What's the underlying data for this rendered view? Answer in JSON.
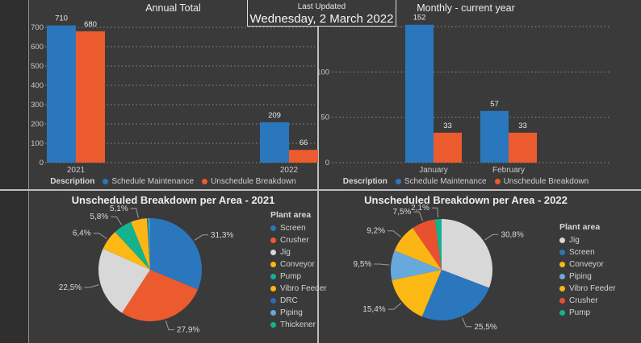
{
  "last_updated": {
    "label": "Last Updated",
    "value": "Wednesday, 2 March 2022"
  },
  "colors": {
    "background": "#3A3A3B",
    "schedule_maintenance_blue": "#2B77BD",
    "unschedule_breakdown_orange": "#EC5B2D",
    "divider_gray": "#BDBDBD"
  },
  "chart_data": [
    {
      "id": "annual",
      "type": "bar",
      "title": "Annual Total",
      "legend_title": "Description",
      "legend_position": "bottom",
      "grid": "dotted",
      "categories": [
        "2021",
        "2022"
      ],
      "series": [
        {
          "name": "Schedule Maintenance",
          "color": "#2B77BD",
          "values": [
            710,
            209
          ]
        },
        {
          "name": "Unschedule Breakdown",
          "color": "#EC5B2D",
          "values": [
            680,
            66
          ]
        }
      ],
      "ylim": [
        0,
        700
      ],
      "yticks": [
        0,
        100,
        200,
        300,
        400,
        500,
        600,
        700
      ],
      "yticks_labeled": [
        0,
        100,
        200,
        300,
        400,
        500,
        600,
        700
      ]
    },
    {
      "id": "monthly",
      "type": "bar",
      "title": "Monthly - current year",
      "legend_title": "Description",
      "legend_position": "bottom",
      "grid": "dotted",
      "categories": [
        "January",
        "February"
      ],
      "series": [
        {
          "name": "Schedule Maintenance",
          "color": "#2B77BD",
          "values": [
            152,
            57
          ]
        },
        {
          "name": "Unschedule Breakdown",
          "color": "#EC5B2D",
          "values": [
            33,
            33
          ]
        }
      ],
      "ylim": [
        0,
        150
      ],
      "yticks": [
        0,
        50,
        100,
        150
      ],
      "yticks_labeled": [
        0,
        50,
        100
      ]
    },
    {
      "id": "pie-2021",
      "type": "pie",
      "title": "Unscheduled Breakdown per Area - 2021",
      "legend_title": "Plant area",
      "legend_position": "right",
      "slices": [
        {
          "name": "Screen",
          "value": 31.3,
          "label": "31,3%",
          "color": "#2B77BD"
        },
        {
          "name": "Crusher",
          "value": 27.9,
          "label": "27,9%",
          "color": "#EC5B2D"
        },
        {
          "name": "Jig",
          "value": 22.5,
          "label": "22,5%",
          "color": "#D8D8D8"
        },
        {
          "name": "Conveyor",
          "value": 6.4,
          "label": "6,4%",
          "color": "#FCB813"
        },
        {
          "name": "Pump",
          "value": 5.8,
          "label": "5,8%",
          "color": "#14B28E"
        },
        {
          "name": "Vibro Feeder",
          "value": 5.1,
          "label": "5,1%",
          "color": "#FBB616"
        },
        {
          "name": "DRC",
          "value": 0.4,
          "label": "",
          "color": "#2A6CB0"
        },
        {
          "name": "Piping",
          "value": 0.3,
          "label": "",
          "color": "#67A9DD"
        },
        {
          "name": "Thickener",
          "value": 0.3,
          "label": "",
          "color": "#14B28E"
        }
      ]
    },
    {
      "id": "pie-2022",
      "type": "pie",
      "title": "Unscheduled Breakdown per Area - 2022",
      "legend_title": "Plant area",
      "legend_position": "right",
      "slices": [
        {
          "name": "Jig",
          "value": 30.8,
          "label": "30,8%",
          "color": "#D8D8D8"
        },
        {
          "name": "Screen",
          "value": 25.5,
          "label": "25,5%",
          "color": "#2B77BD"
        },
        {
          "name": "Conveyor",
          "value": 15.4,
          "label": "15,4%",
          "color": "#FCB813"
        },
        {
          "name": "Piping",
          "value": 9.5,
          "label": "9,5%",
          "color": "#67A9DD"
        },
        {
          "name": "Vibro Feeder",
          "value": 9.2,
          "label": "9,2%",
          "color": "#FBB616"
        },
        {
          "name": "Crusher",
          "value": 7.5,
          "label": "7,5%",
          "color": "#E75130"
        },
        {
          "name": "Pump",
          "value": 2.1,
          "label": "2,1%",
          "color": "#14B28E"
        }
      ]
    }
  ]
}
